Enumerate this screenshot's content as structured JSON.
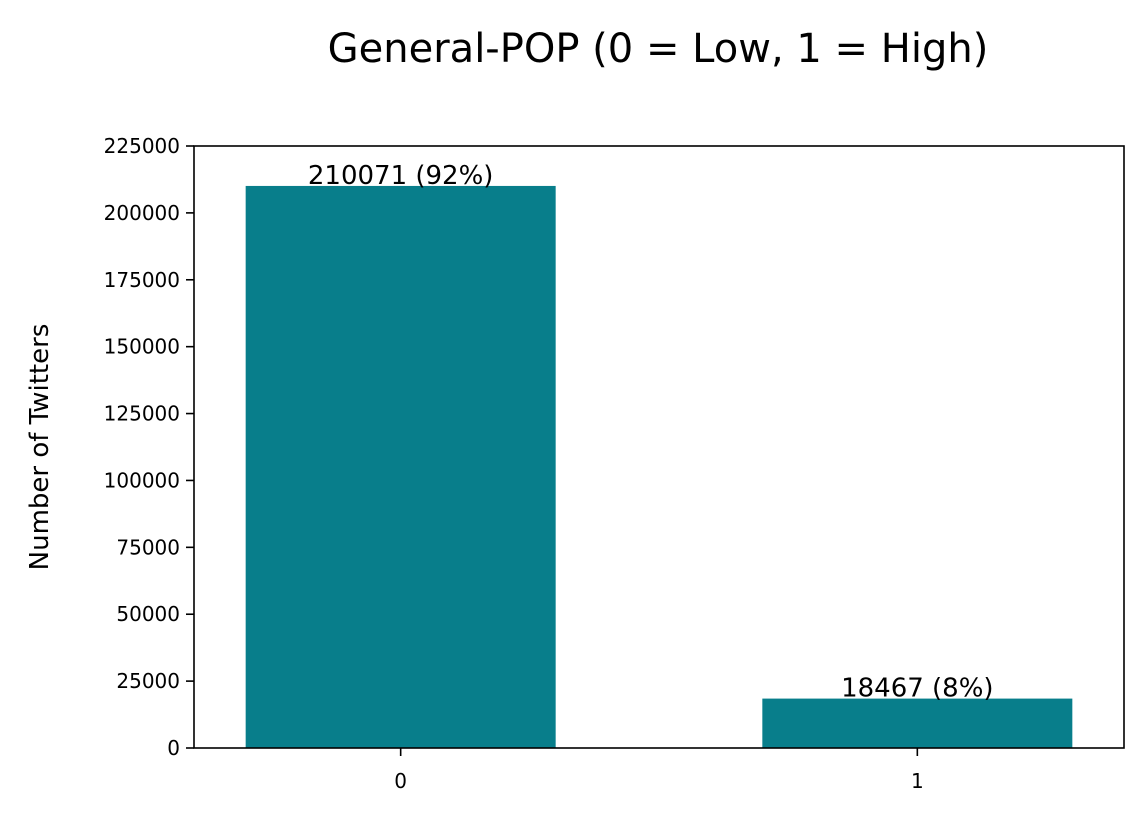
{
  "chart_data": {
    "type": "bar",
    "title": "General-POP (0 = Low, 1 = High)",
    "xlabel": "",
    "ylabel": "Number of Twitters",
    "categories": [
      "0",
      "1"
    ],
    "values": [
      210071,
      18467
    ],
    "data_labels": [
      "210071 (92%)",
      "18467 (8%)"
    ],
    "ylim": [
      0,
      225000
    ],
    "yticks": [
      0,
      25000,
      50000,
      75000,
      100000,
      125000,
      150000,
      175000,
      200000,
      225000
    ],
    "grid": false,
    "legend": "none",
    "bar_color": "#087e8b"
  }
}
